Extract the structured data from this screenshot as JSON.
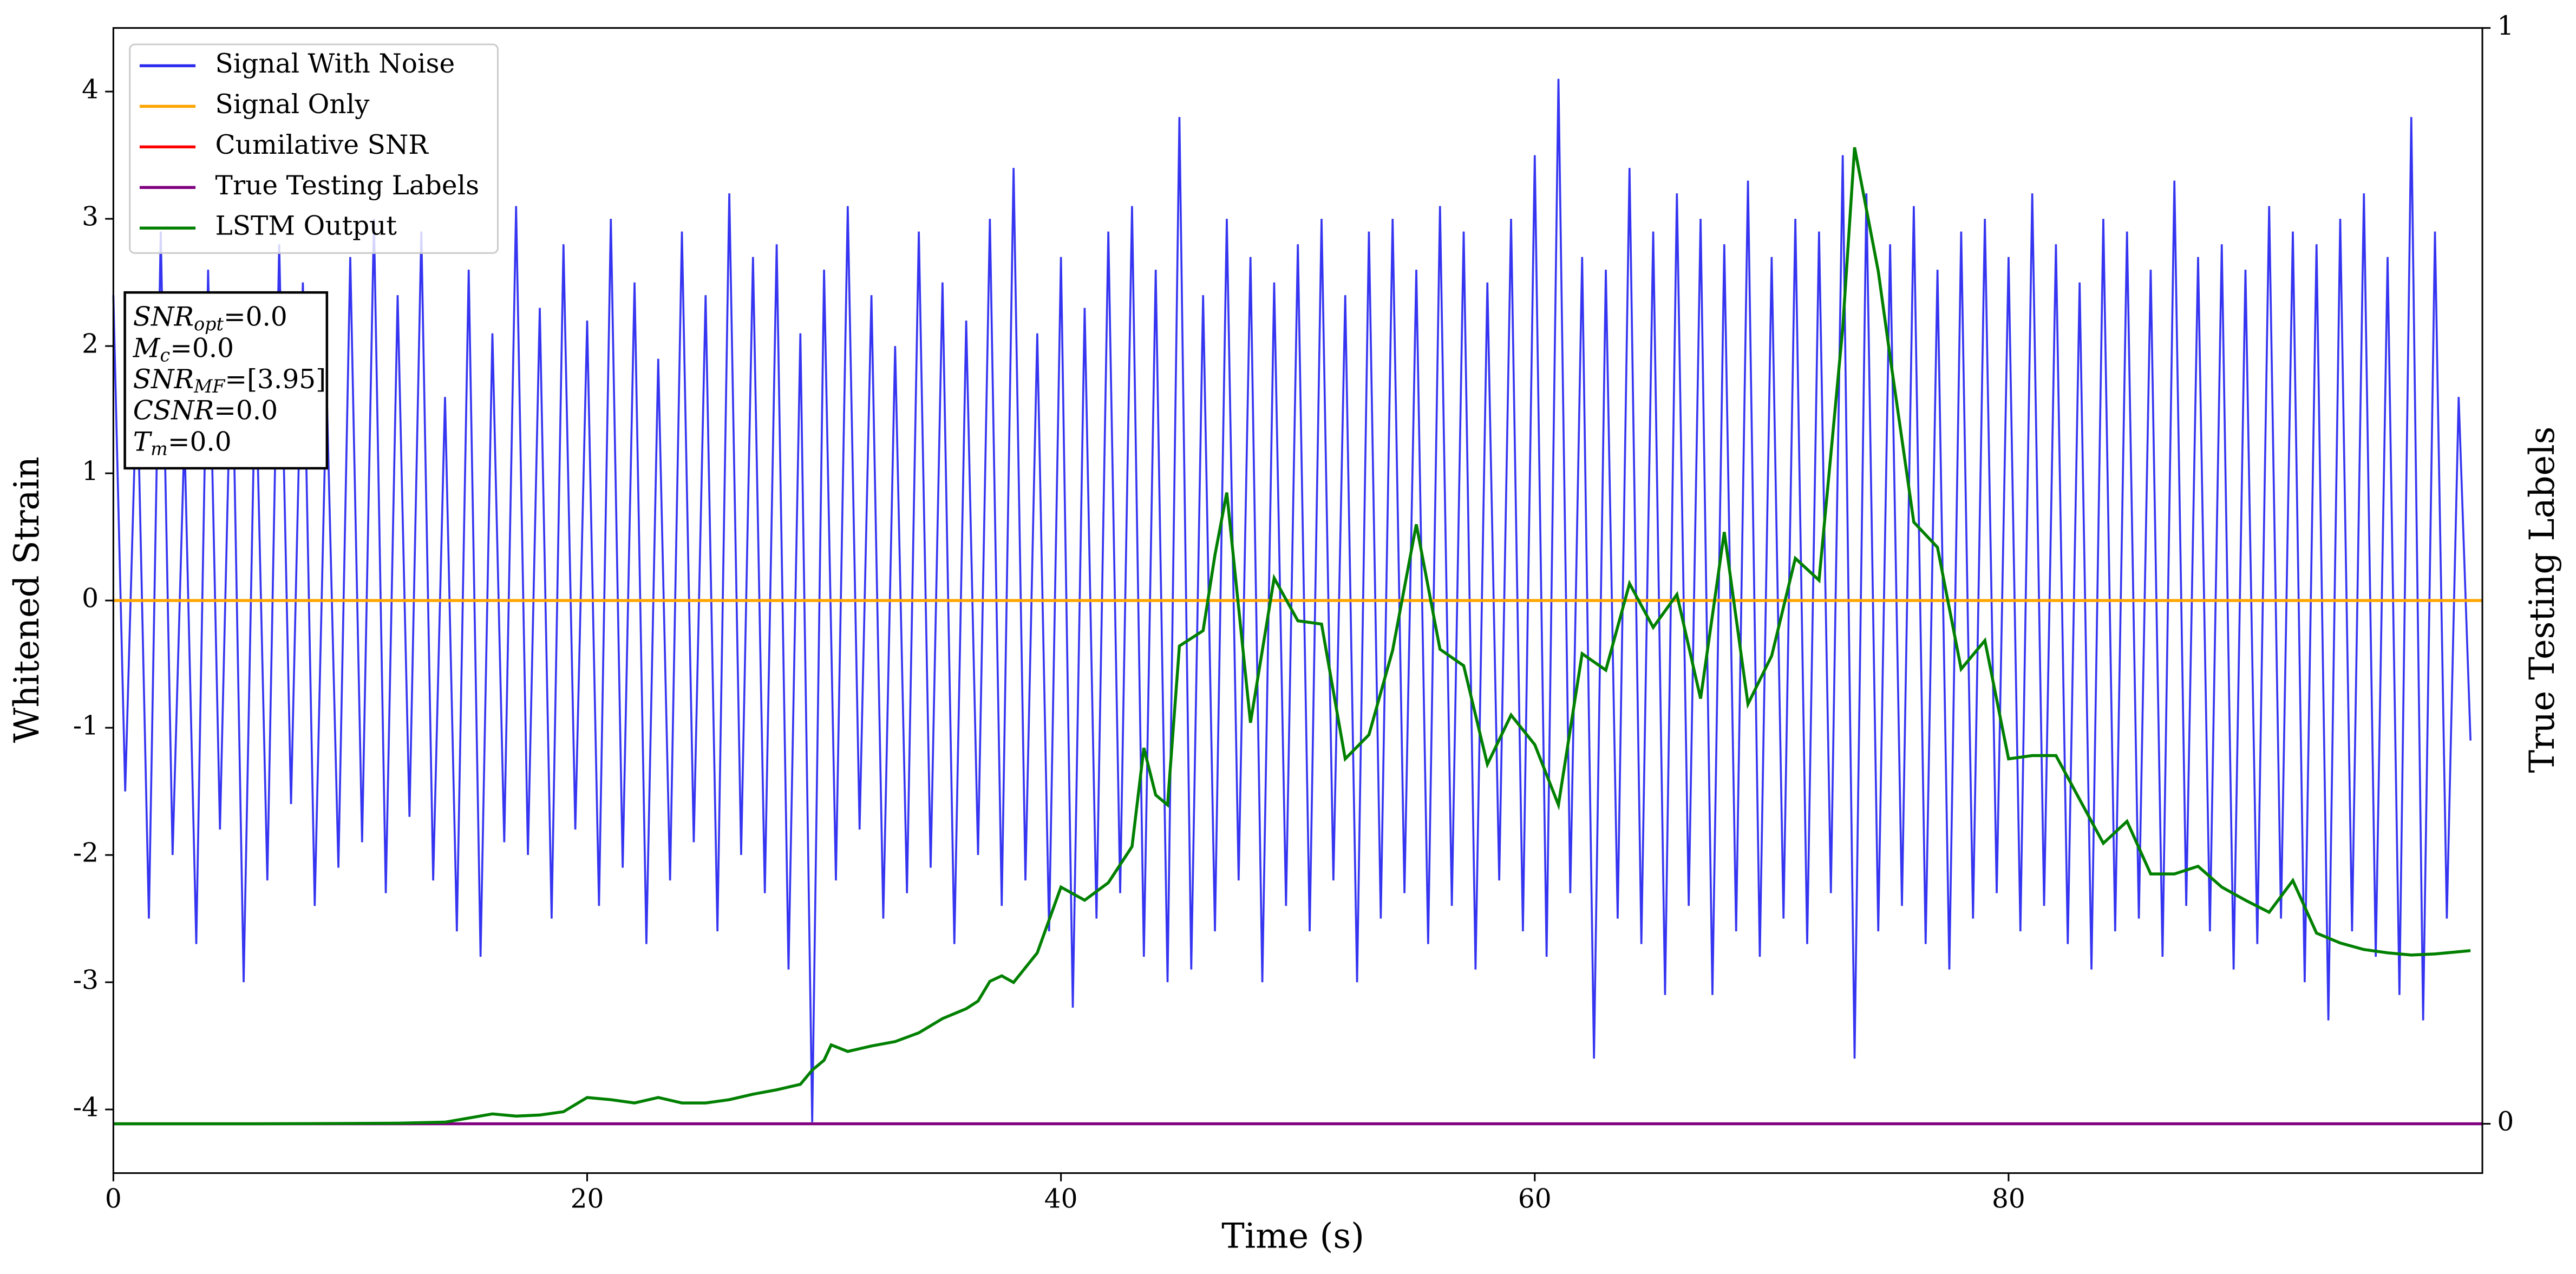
{
  "chart_data": {
    "type": "line",
    "xlabel": "Time (s)",
    "ylabel": "Whitened Strain",
    "y2label": "True Testing Labels",
    "xlim": [
      0,
      100
    ],
    "xticks": [
      0,
      20,
      40,
      60,
      80
    ],
    "ylim": [
      -4.5,
      4.5
    ],
    "yticks": [
      -4,
      -3,
      -2,
      -1,
      0,
      1,
      2,
      3,
      4
    ],
    "y2lim": [
      -0.045,
      1
    ],
    "y2ticks": [
      0,
      1
    ],
    "legend": "upper left",
    "annotations": [
      {
        "main": "SNR",
        "sub": "opt",
        "rest": "=0.0"
      },
      {
        "main": "M",
        "sub": "c",
        "rest": "=0.0"
      },
      {
        "main": "SNR",
        "sub": "MF",
        "rest": "=[3.95]"
      },
      {
        "main": "CSNR",
        "rest": "=0.0"
      },
      {
        "main": "T",
        "sub": "m",
        "rest": "=0.0"
      }
    ],
    "series": [
      {
        "name": "Signal With Noise",
        "color": "#2a2af0",
        "x": [
          0,
          0.5,
          1,
          1.5,
          2,
          2.5,
          3,
          3.5,
          4,
          4.5,
          5,
          5.5,
          6,
          6.5,
          7,
          7.5,
          8,
          8.5,
          9,
          9.5,
          10,
          10.5,
          11,
          11.5,
          12,
          12.5,
          13,
          13.5,
          14,
          14.5,
          15,
          15.5,
          16,
          16.5,
          17,
          17.5,
          18,
          18.5,
          19,
          19.5,
          20,
          20.5,
          21,
          21.5,
          22,
          22.5,
          23,
          23.5,
          24,
          24.5,
          25,
          25.5,
          26,
          26.5,
          27,
          27.5,
          28,
          28.5,
          29,
          29.5,
          30,
          30.5,
          31,
          31.5,
          32,
          32.5,
          33,
          33.5,
          34,
          34.5,
          35,
          35.5,
          36,
          36.5,
          37,
          37.5,
          38,
          38.5,
          39,
          39.5,
          40,
          40.5,
          41,
          41.5,
          42,
          42.5,
          43,
          43.5,
          44,
          44.5,
          45,
          45.5,
          46,
          46.5,
          47,
          47.5,
          48,
          48.5,
          49,
          49.5,
          50,
          50.5,
          51,
          51.5,
          52,
          52.5,
          53,
          53.5,
          54,
          54.5,
          55,
          55.5,
          56,
          56.5,
          57,
          57.5,
          58,
          58.5,
          59,
          59.5,
          60,
          60.5,
          61,
          61.5,
          62,
          62.5,
          63,
          63.5,
          64,
          64.5,
          65,
          65.5,
          66,
          66.5,
          67,
          67.5,
          68,
          68.5,
          69,
          69.5,
          70,
          70.5,
          71,
          71.5,
          72,
          72.5,
          73,
          73.5,
          74,
          74.5,
          75,
          75.5,
          76,
          76.5,
          77,
          77.5,
          78,
          78.5,
          79,
          79.5,
          80,
          80.5,
          81,
          81.5,
          82,
          82.5,
          83,
          83.5,
          84,
          84.5,
          85,
          85.5,
          86,
          86.5,
          87,
          87.5,
          88,
          88.5,
          89,
          89.5,
          90,
          90.5,
          91,
          91.5,
          92,
          92.5,
          93,
          93.5,
          94,
          94.5,
          95,
          95.5,
          96,
          96.5,
          97,
          97.5,
          98,
          98.5,
          99,
          99.5
        ],
        "values": [
          2.4,
          -1.5,
          1.8,
          -2.5,
          2.9,
          -2.0,
          1.3,
          -2.7,
          2.6,
          -1.8,
          2.2,
          -3.0,
          1.9,
          -2.2,
          2.8,
          -1.6,
          2.5,
          -2.4,
          1.7,
          -2.1,
          2.7,
          -1.9,
          3.0,
          -2.3,
          2.4,
          -1.7,
          2.9,
          -2.2,
          1.6,
          -2.6,
          2.6,
          -2.8,
          2.1,
          -1.9,
          3.1,
          -2.0,
          2.3,
          -2.5,
          2.8,
          -1.8,
          2.2,
          -2.4,
          3.0,
          -2.1,
          2.5,
          -2.7,
          1.9,
          -2.2,
          2.9,
          -1.9,
          2.4,
          -2.6,
          3.2,
          -2.0,
          2.7,
          -2.3,
          2.8,
          -2.9,
          2.1,
          -4.1,
          2.6,
          -2.2,
          3.1,
          -1.8,
          2.4,
          -2.5,
          2.0,
          -2.3,
          2.9,
          -2.1,
          2.5,
          -2.7,
          2.2,
          -2.0,
          3.0,
          -2.4,
          3.4,
          -2.2,
          2.1,
          -2.6,
          2.7,
          -3.2,
          2.3,
          -2.5,
          2.9,
          -2.3,
          3.1,
          -2.8,
          2.6,
          -3.0,
          3.8,
          -2.9,
          2.4,
          -2.6,
          3.0,
          -2.2,
          2.7,
          -3.0,
          2.5,
          -2.4,
          2.8,
          -2.6,
          3.0,
          -2.2,
          2.4,
          -3.0,
          2.9,
          -2.5,
          3.0,
          -2.3,
          2.6,
          -2.7,
          3.1,
          -2.4,
          2.9,
          -2.9,
          2.5,
          -2.2,
          3.0,
          -2.6,
          3.5,
          -2.8,
          4.1,
          -2.3,
          2.7,
          -3.6,
          2.6,
          -2.5,
          3.4,
          -2.7,
          2.9,
          -3.1,
          3.2,
          -2.4,
          3.0,
          -3.1,
          2.8,
          -2.6,
          3.3,
          -2.8,
          2.7,
          -2.5,
          3.0,
          -2.7,
          2.9,
          -2.3,
          3.5,
          -3.6,
          3.2,
          -2.6,
          2.8,
          -2.4,
          3.1,
          -2.7,
          2.6,
          -2.9,
          2.9,
          -2.5,
          3.0,
          -2.3,
          2.7,
          -2.6,
          3.2,
          -2.4,
          2.8,
          -2.7,
          2.5,
          -2.9,
          3.0,
          -2.6,
          2.9,
          -2.5,
          2.6,
          -2.8,
          3.3,
          -2.4,
          2.7,
          -2.6,
          2.8,
          -2.9,
          2.6,
          -2.7,
          3.1,
          -2.5,
          2.9,
          -3.0,
          2.8,
          -3.3,
          3.0,
          -2.6,
          3.2,
          -2.8,
          2.7,
          -3.1,
          3.8,
          -3.3,
          2.9,
          -2.5,
          1.6,
          -1.1
        ]
      },
      {
        "name": "Signal Only",
        "color": "#ffa500",
        "x": [
          0,
          100
        ],
        "values": [
          0,
          0
        ]
      },
      {
        "name": "Cumilative SNR",
        "color": "#ff0000",
        "x": [],
        "values": []
      },
      {
        "name": "True Testing Labels",
        "color": "#800080",
        "axis": "y2",
        "x": [
          0,
          100
        ],
        "values": [
          0,
          0
        ]
      },
      {
        "name": "LSTM Output",
        "color": "#008000",
        "axis": "y2",
        "x": [
          0,
          6,
          12,
          14,
          16,
          17,
          18,
          19,
          20,
          21,
          22,
          23,
          24,
          25,
          26,
          27,
          28,
          29,
          29.5,
          30,
          30.3,
          31,
          32,
          33,
          34,
          35,
          36,
          36.5,
          37,
          37.5,
          38,
          39,
          40,
          41,
          42,
          43,
          43.5,
          44,
          44.5,
          45,
          46,
          46.5,
          47,
          48,
          49,
          50,
          51,
          52,
          53,
          54,
          55,
          56,
          57,
          58,
          59,
          60,
          61,
          62,
          63,
          64,
          65,
          66,
          67,
          68,
          69,
          70,
          71,
          72,
          73,
          73.5,
          74.5,
          75,
          76,
          77,
          78,
          79,
          80,
          81,
          82,
          83,
          84,
          85,
          86,
          87,
          88,
          89,
          90,
          91,
          92,
          93,
          94,
          95,
          96,
          97,
          98,
          99.5
        ],
        "values": [
          0,
          0,
          0.0005,
          0.0015,
          0.009,
          0.007,
          0.008,
          0.011,
          0.024,
          0.022,
          0.019,
          0.024,
          0.019,
          0.019,
          0.022,
          0.027,
          0.031,
          0.036,
          0.049,
          0.058,
          0.072,
          0.066,
          0.071,
          0.075,
          0.083,
          0.096,
          0.105,
          0.112,
          0.13,
          0.135,
          0.129,
          0.156,
          0.216,
          0.204,
          0.22,
          0.253,
          0.343,
          0.3,
          0.291,
          0.436,
          0.45,
          0.519,
          0.576,
          0.366,
          0.498,
          0.459,
          0.456,
          0.333,
          0.355,
          0.432,
          0.547,
          0.433,
          0.418,
          0.328,
          0.373,
          0.346,
          0.291,
          0.429,
          0.414,
          0.493,
          0.453,
          0.483,
          0.388,
          0.54,
          0.383,
          0.427,
          0.516,
          0.496,
          0.726,
          0.891,
          0.778,
          0.7,
          0.549,
          0.526,
          0.415,
          0.441,
          0.333,
          0.336,
          0.336,
          0.296,
          0.256,
          0.276,
          0.228,
          0.228,
          0.235,
          0.216,
          0.204,
          0.193,
          0.222,
          0.174,
          0.165,
          0.159,
          0.156,
          0.154,
          0.155,
          0.158
        ]
      }
    ]
  }
}
